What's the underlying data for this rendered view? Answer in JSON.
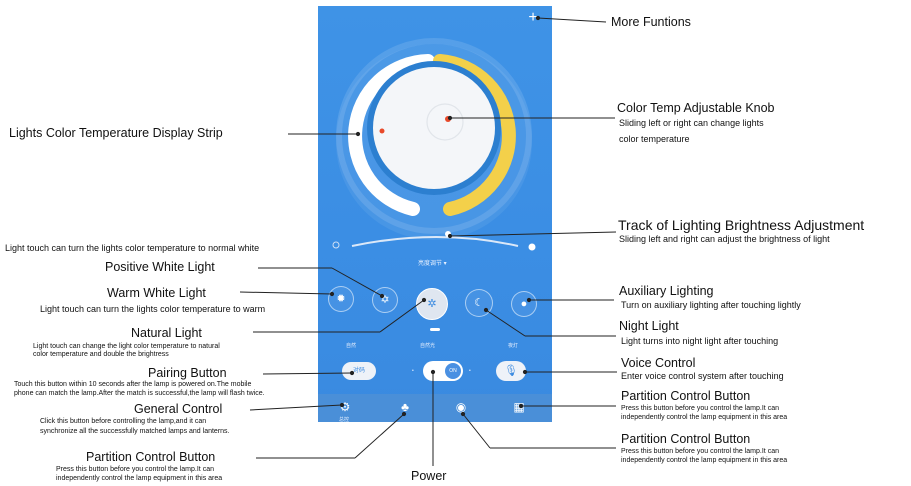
{
  "phone": {
    "plus_icon": "plus-icon",
    "track_label": "亮度调节 ▾",
    "side_labels": {
      "left": "自然",
      "center": "自然光",
      "right": "夜灯"
    },
    "toggle_label": "ON",
    "pairing_label": "对码",
    "tab_labels": {
      "general": "总控"
    }
  },
  "annotations": {
    "more_functions": "More Funtions",
    "color_temp_knob": {
      "title": "Color Temp Adjustable Knob",
      "desc1": "Sliding left or right can change lights",
      "desc2": "color temperature"
    },
    "display_strip": "Lights Color Temperature Display Strip",
    "track": {
      "title": "Track of Lighting Brightness Adjustment",
      "desc": "Sliding left and right can adjust the brightness of light"
    },
    "normal_white_note": "Light touch can turn the lights color temperature to normal white",
    "positive_white": "Positive White Light",
    "warm_white": {
      "title": "Warm White Light",
      "desc": "Light touch can turn the lights color temperature to warm"
    },
    "natural": {
      "title": "Natural Light",
      "desc1": "Light touch can change the light color temperature to natural",
      "desc2": "color temperature and double the brightress"
    },
    "pairing": {
      "title": "Pairing Button",
      "desc1": "Touch this button within 10 seconds after the lamp is powered on.The mobile",
      "desc2": "phone can match the lamp.After the match is successful,the lamp will flash twice."
    },
    "general": {
      "title": "General Control",
      "desc1": "Click this button before controlling the lamp,and it can",
      "desc2": "synchronize all the successfully matched lamps and lanterns."
    },
    "partition_left": {
      "title": "Partition Control Button",
      "desc1": "Press this button before you control the lamp.It can",
      "desc2": "independently control the lamp equipment in this area"
    },
    "power": "Power",
    "auxiliary": {
      "title": "Auxiliary Lighting",
      "desc": "Turn on auxiliary lighting after touching lightly"
    },
    "night": {
      "title": "Night Light",
      "desc": "Light turns into night light after touching"
    },
    "voice": {
      "title": "Voice Control",
      "desc": "Enter voice control system after touching"
    },
    "partition_right1": {
      "title": "Partition Control Button",
      "desc1": "Press this button before you control the lamp.It can",
      "desc2": "independently control the lamp equipment in this area"
    },
    "partition_right2": {
      "title": "Partition Control Button",
      "desc1": "Press this button before you control the lamp.It can",
      "desc2": "independently control the lamp equipment in this area"
    }
  },
  "colors": {
    "phone_bg": "#3b8ee4",
    "warm_strip": "#f3d04a",
    "cool_strip": "#ffffff",
    "knob_face": "#f4f6f9",
    "marker_red": "#e8492a"
  }
}
